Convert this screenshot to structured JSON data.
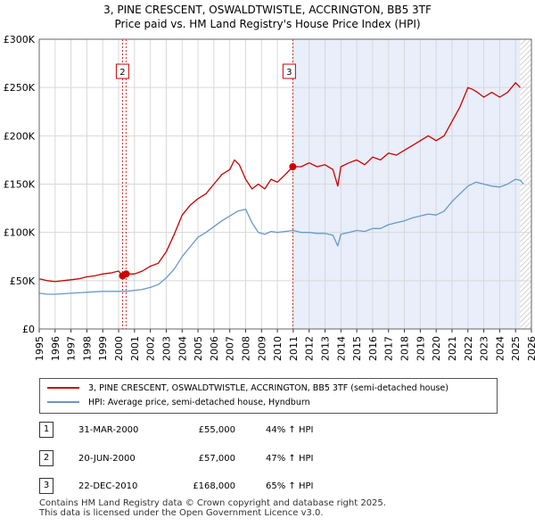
{
  "title_line1": "3, PINE CRESCENT, OSWALDTWISTLE, ACCRINGTON, BB5 3TF",
  "title_line2": "Price paid vs. HM Land Registry's House Price Index (HPI)",
  "legend": {
    "property_label": "3, PINE CRESCENT, OSWALDTWISTLE, ACCRINGTON, BB5 3TF (semi-detached house)",
    "hpi_label": "HPI: Average price, semi-detached house, Hyndburn"
  },
  "sales": [
    {
      "num": "1",
      "date": "31-MAR-2000",
      "price": "£55,000",
      "hpi": "44% ↑ HPI"
    },
    {
      "num": "2",
      "date": "20-JUN-2000",
      "price": "£57,000",
      "hpi": "47% ↑ HPI"
    },
    {
      "num": "3",
      "date": "22-DEC-2010",
      "price": "£168,000",
      "hpi": "65% ↑ HPI"
    }
  ],
  "footer_line1": "Contains HM Land Registry data © Crown copyright and database right 2025.",
  "footer_line2": "This data is licensed under the Open Government Licence v3.0.",
  "colors": {
    "property": "#cc0000",
    "hpi": "#6699cc",
    "shade": "#e8eefa",
    "grid": "#d8d8d8",
    "vline": "#cc0000",
    "hatch": "#aaaaaa"
  },
  "chart_data": {
    "type": "line",
    "title": "3, PINE CRESCENT, OSWALDTWISTLE, ACCRINGTON, BB5 3TF — Price paid vs. HM Land Registry's House Price Index (HPI)",
    "xlabel": "",
    "ylabel": "",
    "xlim": [
      1995,
      2026
    ],
    "ylim": [
      0,
      300000
    ],
    "x_ticks": [
      "1995",
      "1996",
      "1997",
      "1998",
      "1999",
      "2000",
      "2001",
      "2002",
      "2003",
      "2004",
      "2005",
      "2006",
      "2007",
      "2008",
      "2009",
      "2010",
      "2011",
      "2012",
      "2013",
      "2014",
      "2015",
      "2016",
      "2017",
      "2018",
      "2019",
      "2020",
      "2021",
      "2022",
      "2023",
      "2024",
      "2025",
      "2026"
    ],
    "y_ticks": [
      {
        "value": 0,
        "label": "£0"
      },
      {
        "value": 50000,
        "label": "£50K"
      },
      {
        "value": 100000,
        "label": "£100K"
      },
      {
        "value": 150000,
        "label": "£150K"
      },
      {
        "value": 200000,
        "label": "£200K"
      },
      {
        "value": 250000,
        "label": "£250K"
      },
      {
        "value": 300000,
        "label": "£300K"
      }
    ],
    "grid": true,
    "legend_position": "below",
    "shaded_region": [
      2010.97,
      2025.3
    ],
    "hatched_region": [
      2025.3,
      2026
    ],
    "sale_markers": [
      {
        "label": "1",
        "x": 2000.25,
        "value": 55000
      },
      {
        "label": "2",
        "x": 2000.47,
        "value": 57000
      },
      {
        "label": "3",
        "x": 2010.97,
        "value": 168000
      }
    ],
    "series": [
      {
        "name": "3, PINE CRESCENT, OSWALDTWISTLE, ACCRINGTON, BB5 3TF (semi-detached house)",
        "x": [
          1995.0,
          1995.5,
          1996.0,
          1996.5,
          1997.0,
          1997.5,
          1998.0,
          1998.5,
          1999.0,
          1999.5,
          2000.0,
          2000.25,
          2000.47,
          2001.0,
          2001.5,
          2002.0,
          2002.5,
          2003.0,
          2003.5,
          2004.0,
          2004.5,
          2005.0,
          2005.5,
          2006.0,
          2006.5,
          2007.0,
          2007.3,
          2007.6,
          2008.0,
          2008.4,
          2008.8,
          2009.2,
          2009.6,
          2010.0,
          2010.5,
          2010.97,
          2011.5,
          2012.0,
          2012.5,
          2013.0,
          2013.5,
          2013.8,
          2014.0,
          2014.5,
          2015.0,
          2015.5,
          2016.0,
          2016.5,
          2017.0,
          2017.5,
          2018.0,
          2018.5,
          2019.0,
          2019.5,
          2020.0,
          2020.5,
          2021.0,
          2021.5,
          2022.0,
          2022.3,
          2022.6,
          2023.0,
          2023.5,
          2024.0,
          2024.5,
          2025.0,
          2025.3
        ],
        "values": [
          52000,
          50000,
          49000,
          50000,
          51000,
          52000,
          54000,
          55000,
          57000,
          58000,
          60000,
          55000,
          57000,
          57000,
          60000,
          65000,
          68000,
          80000,
          98000,
          118000,
          128000,
          135000,
          140000,
          150000,
          160000,
          165000,
          175000,
          170000,
          155000,
          145000,
          150000,
          145000,
          155000,
          152000,
          160000,
          168000,
          168000,
          172000,
          168000,
          170000,
          165000,
          148000,
          168000,
          172000,
          175000,
          170000,
          178000,
          175000,
          182000,
          180000,
          185000,
          190000,
          195000,
          200000,
          195000,
          200000,
          215000,
          230000,
          250000,
          248000,
          245000,
          240000,
          245000,
          240000,
          245000,
          255000,
          250000
        ]
      },
      {
        "name": "HPI: Average price, semi-detached house, Hyndburn",
        "x": [
          1995.0,
          1995.5,
          1996.0,
          1996.5,
          1997.0,
          1997.5,
          1998.0,
          1998.5,
          1999.0,
          1999.5,
          2000.0,
          2000.5,
          2001.0,
          2001.5,
          2002.0,
          2002.5,
          2003.0,
          2003.5,
          2004.0,
          2004.5,
          2005.0,
          2005.5,
          2006.0,
          2006.5,
          2007.0,
          2007.5,
          2008.0,
          2008.4,
          2008.8,
          2009.2,
          2009.6,
          2010.0,
          2010.5,
          2011.0,
          2011.5,
          2012.0,
          2012.5,
          2013.0,
          2013.5,
          2013.8,
          2014.0,
          2014.5,
          2015.0,
          2015.5,
          2016.0,
          2016.5,
          2017.0,
          2017.5,
          2018.0,
          2018.5,
          2019.0,
          2019.5,
          2020.0,
          2020.5,
          2021.0,
          2021.5,
          2022.0,
          2022.5,
          2023.0,
          2023.5,
          2024.0,
          2024.5,
          2025.0,
          2025.3,
          2025.5
        ],
        "values": [
          37000,
          36000,
          36000,
          36500,
          37000,
          37500,
          38000,
          38500,
          39000,
          39000,
          39000,
          39000,
          40000,
          41000,
          43000,
          46000,
          53000,
          62000,
          75000,
          85000,
          95000,
          100000,
          106000,
          112000,
          117000,
          122000,
          124000,
          110000,
          100000,
          98000,
          101000,
          100000,
          101000,
          102000,
          100000,
          100000,
          99000,
          99000,
          97000,
          86000,
          98000,
          100000,
          102000,
          101000,
          104000,
          104000,
          108000,
          110000,
          112000,
          115000,
          117000,
          119000,
          118000,
          122000,
          132000,
          140000,
          148000,
          152000,
          150000,
          148000,
          147000,
          150000,
          155000,
          154000,
          150000
        ]
      }
    ]
  }
}
